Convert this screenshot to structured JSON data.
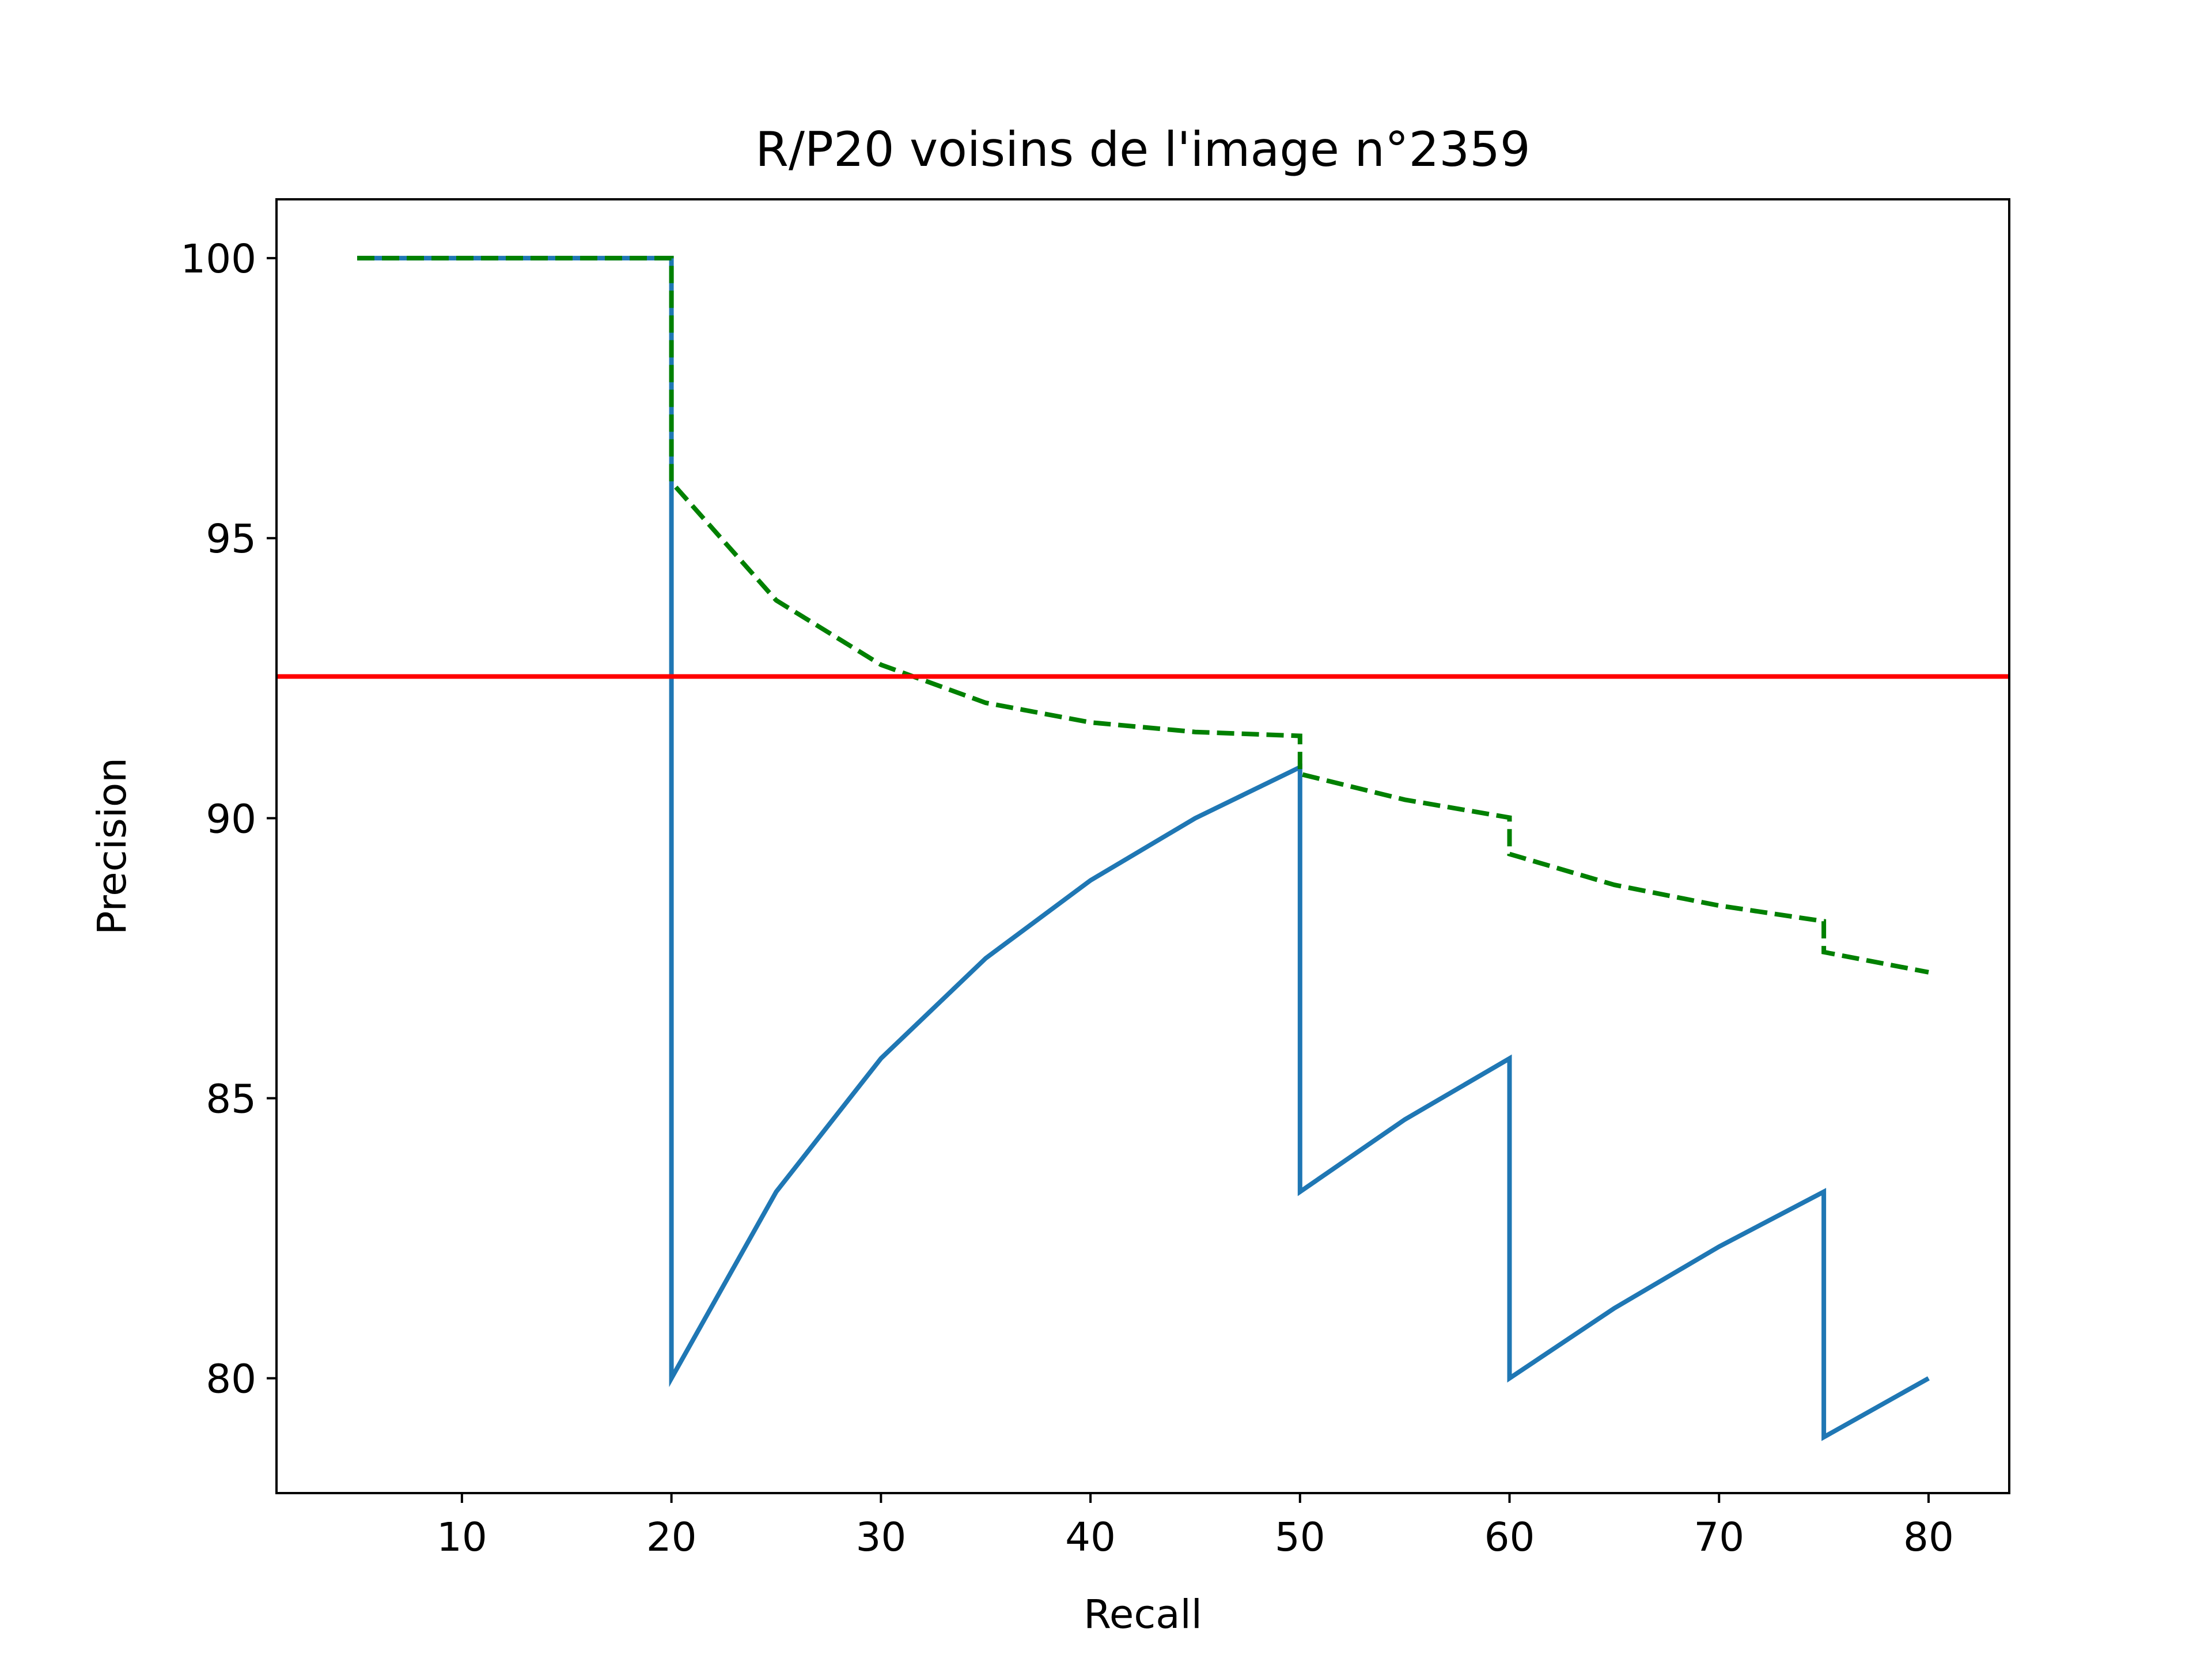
{
  "chart_data": {
    "type": "line",
    "title": "R/P20 voisins de l'image n°2359",
    "xlabel": "Recall",
    "ylabel": "Precision",
    "xlim": [
      1.15,
      83.85
    ],
    "ylim": [
      77.95,
      101.05
    ],
    "xticks": [
      10,
      20,
      30,
      40,
      50,
      60,
      70,
      80
    ],
    "yticks": [
      80,
      85,
      90,
      95,
      100
    ],
    "grid": false,
    "legend": "none",
    "series": [
      {
        "style": "solid",
        "color": "#1f77b4",
        "points": [
          [
            5,
            100
          ],
          [
            10,
            100
          ],
          [
            15,
            100
          ],
          [
            20,
            100
          ],
          [
            20,
            80
          ],
          [
            25,
            83.33
          ],
          [
            30,
            85.71
          ],
          [
            35,
            87.5
          ],
          [
            40,
            88.89
          ],
          [
            45,
            90
          ],
          [
            50,
            90.91
          ],
          [
            50,
            83.33
          ],
          [
            55,
            84.62
          ],
          [
            60,
            85.71
          ],
          [
            60,
            80
          ],
          [
            65,
            81.25
          ],
          [
            70,
            82.35
          ],
          [
            75,
            83.33
          ],
          [
            75,
            78.95
          ],
          [
            80,
            80
          ]
        ]
      },
      {
        "style": "dashed",
        "color": "#008000",
        "points": [
          [
            5,
            100
          ],
          [
            10,
            100
          ],
          [
            15,
            100
          ],
          [
            20,
            100
          ],
          [
            20,
            96
          ],
          [
            25,
            93.89
          ],
          [
            30,
            92.74
          ],
          [
            35,
            92.06
          ],
          [
            40,
            91.71
          ],
          [
            45,
            91.54
          ],
          [
            50,
            91.47
          ],
          [
            50,
            90.79
          ],
          [
            55,
            90.33
          ],
          [
            60,
            90.01
          ],
          [
            60,
            89.36
          ],
          [
            65,
            88.81
          ],
          [
            70,
            88.44
          ],
          [
            75,
            88.16
          ],
          [
            75,
            87.61
          ],
          [
            80,
            87.25
          ]
        ]
      },
      {
        "style": "solid",
        "color": "#ff0000",
        "points": [
          [
            1.15,
            92.53
          ],
          [
            83.85,
            92.53
          ]
        ]
      }
    ]
  }
}
